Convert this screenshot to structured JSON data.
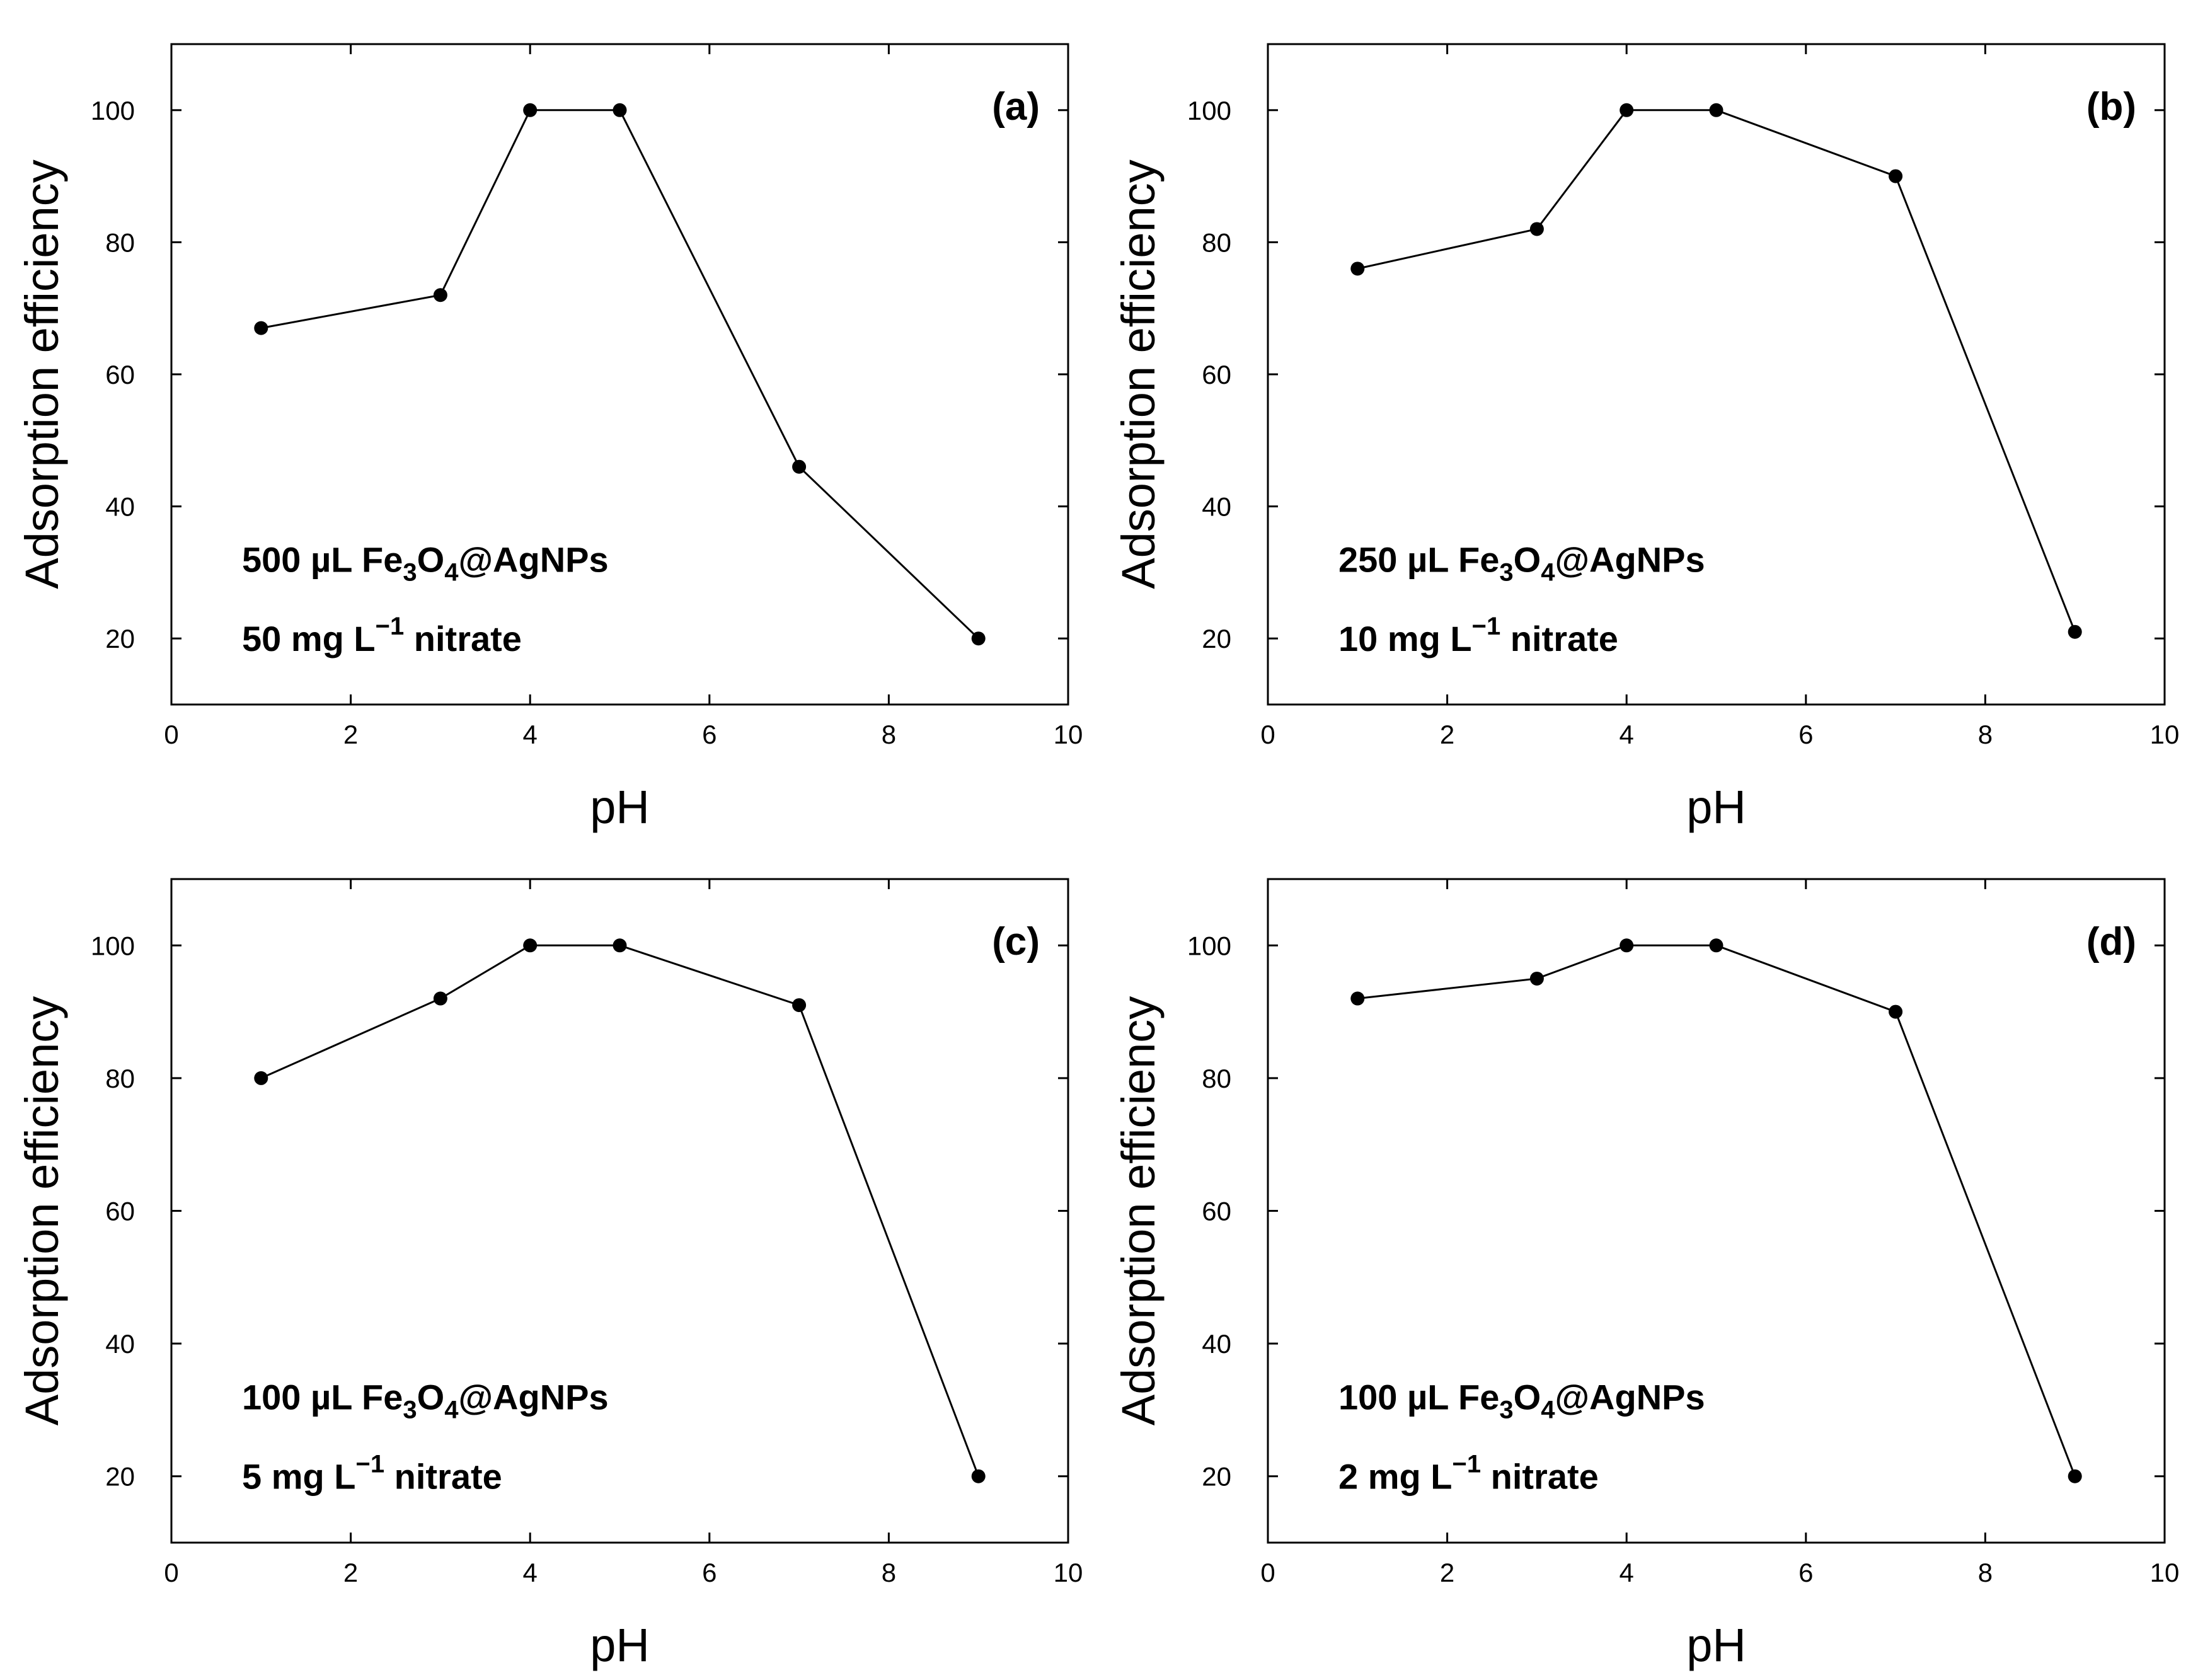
{
  "chart_data": [
    {
      "type": "line",
      "panel_label": "(a)",
      "xlabel": "pH",
      "ylabel": "Adsorption efficiency",
      "xlim": [
        0,
        10
      ],
      "ylim": [
        10,
        110
      ],
      "xticks": [
        0,
        2,
        4,
        6,
        8,
        10
      ],
      "yticks": [
        20,
        40,
        60,
        80,
        100
      ],
      "grid": false,
      "annotation": {
        "line1": {
          "pre": "500 µL Fe",
          "sub1": "3",
          "mid": "O",
          "sub2": "4",
          "post": "@AgNPs"
        },
        "line2": {
          "pre": "50 mg L",
          "sup": "−1",
          "post": " nitrate"
        }
      },
      "series": [
        {
          "x": [
            1,
            3,
            4,
            5,
            7,
            9
          ],
          "y": [
            67,
            72,
            100,
            100,
            46,
            20
          ]
        }
      ]
    },
    {
      "type": "line",
      "panel_label": "(b)",
      "xlabel": "pH",
      "ylabel": "Adsorption efficiency",
      "xlim": [
        0,
        10
      ],
      "ylim": [
        10,
        110
      ],
      "xticks": [
        0,
        2,
        4,
        6,
        8,
        10
      ],
      "yticks": [
        20,
        40,
        60,
        80,
        100
      ],
      "grid": false,
      "annotation": {
        "line1": {
          "pre": "250 µL Fe",
          "sub1": "3",
          "mid": "O",
          "sub2": "4",
          "post": "@AgNPs"
        },
        "line2": {
          "pre": "10 mg L",
          "sup": "−1",
          "post": " nitrate"
        }
      },
      "series": [
        {
          "x": [
            1,
            3,
            4,
            5,
            7,
            9
          ],
          "y": [
            76,
            82,
            100,
            100,
            90,
            21
          ]
        }
      ]
    },
    {
      "type": "line",
      "panel_label": "(c)",
      "xlabel": "pH",
      "ylabel": "Adsorption efficiency",
      "xlim": [
        0,
        10
      ],
      "ylim": [
        10,
        110
      ],
      "xticks": [
        0,
        2,
        4,
        6,
        8,
        10
      ],
      "yticks": [
        20,
        40,
        60,
        80,
        100
      ],
      "grid": false,
      "annotation": {
        "line1": {
          "pre": "100 µL Fe",
          "sub1": "3",
          "mid": "O",
          "sub2": "4",
          "post": "@AgNPs"
        },
        "line2": {
          "pre": "5 mg L",
          "sup": "−1",
          "post": " nitrate"
        }
      },
      "series": [
        {
          "x": [
            1,
            3,
            4,
            5,
            7,
            9
          ],
          "y": [
            80,
            92,
            100,
            100,
            91,
            20
          ]
        }
      ]
    },
    {
      "type": "line",
      "panel_label": "(d)",
      "xlabel": "pH",
      "ylabel": "Adsorption efficiency",
      "xlim": [
        0,
        10
      ],
      "ylim": [
        10,
        110
      ],
      "xticks": [
        0,
        2,
        4,
        6,
        8,
        10
      ],
      "yticks": [
        20,
        40,
        60,
        80,
        100
      ],
      "grid": false,
      "annotation": {
        "line1": {
          "pre": "100 µL Fe",
          "sub1": "3",
          "mid": "O",
          "sub2": "4",
          "post": "@AgNPs"
        },
        "line2": {
          "pre": "2 mg L",
          "sup": "−1",
          "post": " nitrate"
        }
      },
      "series": [
        {
          "x": [
            1,
            3,
            4,
            5,
            7,
            9
          ],
          "y": [
            92,
            95,
            100,
            100,
            90,
            20
          ]
        }
      ]
    }
  ]
}
